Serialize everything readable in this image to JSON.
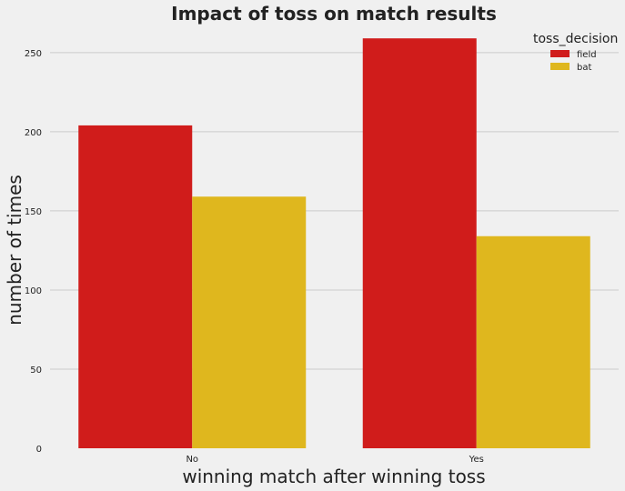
{
  "chart_data": {
    "type": "bar",
    "title": "Impact of toss on match results",
    "xlabel": "winning match after winning toss",
    "ylabel": "number of times",
    "categories": [
      "No",
      "Yes"
    ],
    "series": [
      {
        "name": "field",
        "values": [
          204,
          259
        ],
        "color": "#d01c1b"
      },
      {
        "name": "bat",
        "values": [
          159,
          134
        ],
        "color": "#dfb71e"
      }
    ],
    "ylim": [
      0,
      266
    ],
    "yticks": [
      0,
      50,
      100,
      150,
      200,
      250
    ],
    "grid": true,
    "legend": {
      "title": "toss_decision",
      "placement": "top-right"
    }
  }
}
